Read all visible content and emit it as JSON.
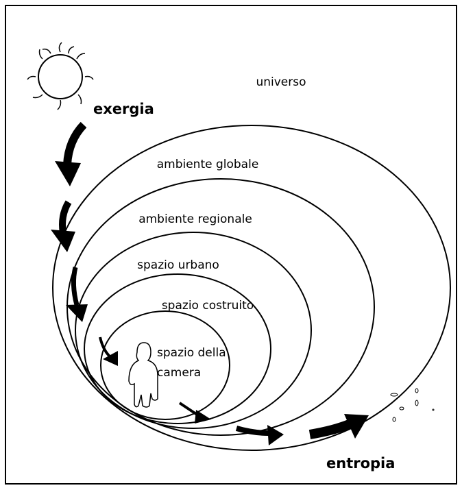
{
  "labels": {
    "universo": "universo",
    "global": "ambiente globale",
    "regional": "ambiente regionale",
    "urban": "spazio urbano",
    "built": "spazio costruito",
    "room_line1": "spazio della",
    "room_line2": "camera",
    "exergy": "exergia",
    "entropy": "entropia"
  }
}
